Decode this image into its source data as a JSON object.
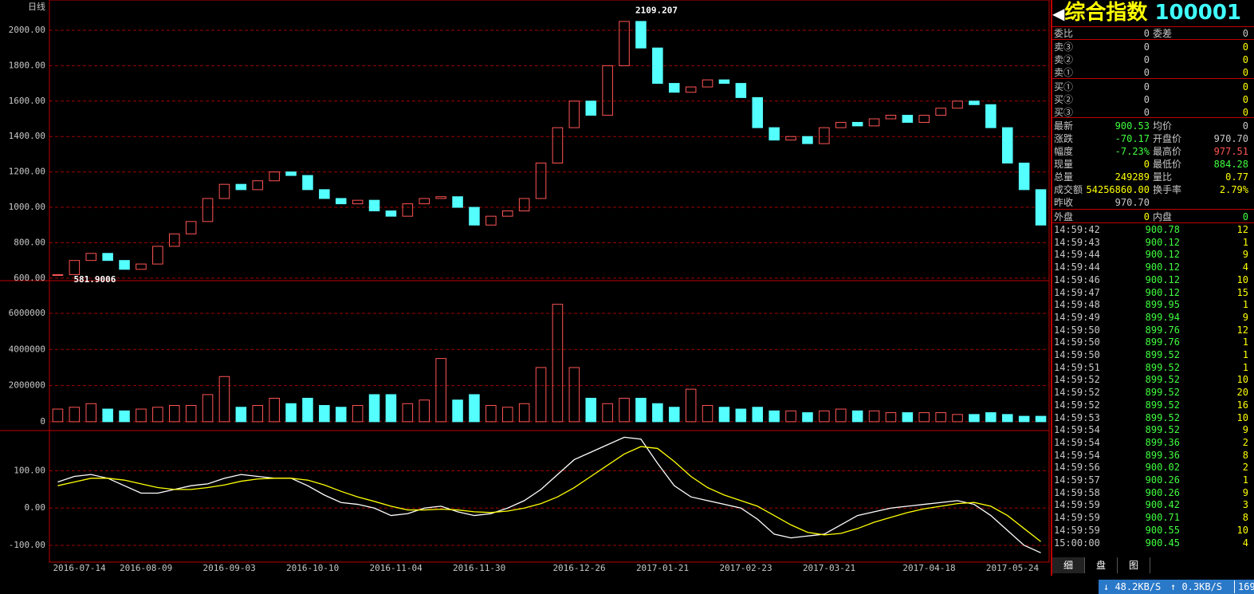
{
  "chart_data": [
    {
      "type": "candlestick",
      "title": "日线",
      "high_label": 2109.207,
      "low_label": 581.9006,
      "values": [
        620,
        700,
        740,
        700,
        650,
        680,
        780,
        850,
        920,
        1050,
        1130,
        1100,
        1150,
        1200,
        1180,
        1100,
        1050,
        1020,
        1040,
        980,
        950,
        1020,
        1050,
        1060,
        1000,
        900,
        950,
        980,
        1050,
        1250,
        1450,
        1600,
        1520,
        1800,
        2050,
        1900,
        1700,
        1650,
        1680,
        1720,
        1700,
        1620,
        1450,
        1380,
        1400,
        1360,
        1450,
        1480,
        1460,
        1500,
        1520,
        1480,
        1520,
        1560,
        1600,
        1580,
        1450,
        1250,
        1100,
        900
      ],
      "ylim": [
        586,
        2171
      ],
      "yticks": [
        {
          "value": 600,
          "label": "600.00"
        },
        {
          "value": 800,
          "label": "800.00"
        },
        {
          "value": 1000,
          "label": "1000.00"
        },
        {
          "value": 1200,
          "label": "1200.00"
        },
        {
          "value": 1400,
          "label": "1400.00"
        },
        {
          "value": 1600,
          "label": "1600.00"
        },
        {
          "value": 1800,
          "label": "1800.00"
        },
        {
          "value": 2000,
          "label": "2000.00"
        }
      ],
      "grid": true,
      "up_color": "#ff5454",
      "down_color": "#54ffff"
    },
    {
      "type": "bar",
      "values": [
        700000,
        800000,
        1000000,
        700000,
        600000,
        700000,
        800000,
        900000,
        900000,
        1500000,
        2500000,
        800000,
        900000,
        1300000,
        1000000,
        1300000,
        900000,
        800000,
        900000,
        1500000,
        1500000,
        1000000,
        1200000,
        3500000,
        1200000,
        1500000,
        900000,
        800000,
        1000000,
        3000000,
        6500000,
        3000000,
        1300000,
        1000000,
        1300000,
        1300000,
        1000000,
        800000,
        1800000,
        900000,
        800000,
        700000,
        800000,
        600000,
        600000,
        500000,
        600000,
        700000,
        600000,
        600000,
        500000,
        500000,
        500000,
        500000,
        400000,
        400000,
        500000,
        400000,
        300000,
        300000
      ],
      "ylim": [
        -490000,
        7810000
      ],
      "yticks": [
        0,
        2000000,
        4000000,
        6000000
      ],
      "grid": true
    },
    {
      "type": "line",
      "categories": [
        "2016-07-14",
        null,
        null,
        null,
        "2016-08-09",
        null,
        null,
        null,
        null,
        "2016-09-03",
        null,
        null,
        null,
        null,
        "2016-10-10",
        null,
        null,
        null,
        null,
        "2016-11-04",
        null,
        null,
        null,
        null,
        "2016-11-30",
        null,
        null,
        null,
        null,
        null,
        "2016-12-26",
        null,
        null,
        null,
        null,
        "2017-01-21",
        null,
        null,
        null,
        null,
        "2017-02-23",
        null,
        null,
        null,
        null,
        "2017-03-21",
        null,
        null,
        null,
        null,
        null,
        "2017-04-18",
        null,
        null,
        null,
        null,
        "2017-05-24",
        null,
        null,
        null
      ],
      "series": [
        {
          "color": "#ffffff",
          "values": [
            70,
            85,
            90,
            80,
            60,
            40,
            40,
            50,
            60,
            65,
            80,
            90,
            85,
            80,
            80,
            60,
            35,
            15,
            10,
            0,
            -20,
            -15,
            0,
            5,
            -10,
            -20,
            -15,
            0,
            20,
            50,
            90,
            130,
            150,
            170,
            190,
            185,
            120,
            60,
            30,
            20,
            10,
            0,
            -30,
            -70,
            -80,
            -75,
            -70,
            -45,
            -20,
            -10,
            0,
            5,
            10,
            15,
            20,
            10,
            -20,
            -60,
            -100,
            -120
          ]
        },
        {
          "color": "#ffff00",
          "values": [
            60,
            70,
            80,
            80,
            75,
            65,
            55,
            50,
            50,
            55,
            62,
            72,
            78,
            80,
            80,
            75,
            62,
            45,
            30,
            18,
            5,
            -5,
            -5,
            -3,
            -5,
            -10,
            -12,
            -8,
            0,
            12,
            30,
            55,
            85,
            115,
            145,
            165,
            160,
            125,
            85,
            55,
            35,
            20,
            5,
            -20,
            -45,
            -65,
            -72,
            -68,
            -55,
            -38,
            -25,
            -12,
            -2,
            5,
            12,
            15,
            5,
            -20,
            -55,
            -90
          ]
        }
      ],
      "ylim": [
        -145,
        208
      ],
      "yticks": [
        {
          "value": -100,
          "label": "-100.00"
        },
        {
          "value": 0,
          "label": "0.00"
        },
        {
          "value": 100,
          "label": "100.00"
        }
      ],
      "grid": true
    }
  ],
  "quote": {
    "name": "综合指数",
    "code": "100001",
    "rows": [
      [
        "委比",
        "0",
        "委差",
        "0"
      ],
      [
        "卖③",
        "0",
        "",
        "0"
      ],
      [
        "卖②",
        "0",
        "",
        "0"
      ],
      [
        "卖①",
        "0",
        "",
        "0"
      ],
      [
        "买①",
        "0",
        "",
        "0"
      ],
      [
        "买②",
        "0",
        "",
        "0"
      ],
      [
        "买③",
        "0",
        "",
        "0"
      ],
      [
        "最新",
        "900.53",
        "均价",
        "0"
      ],
      [
        "涨跌",
        "-70.17",
        "开盘价",
        "970.70"
      ],
      [
        "幅度",
        "-7.23%",
        "最高价",
        "977.51"
      ],
      [
        "现量",
        "0",
        "最低价",
        "884.28"
      ],
      [
        "总量",
        "249289",
        "量比",
        "0.77"
      ],
      [
        "成交额",
        "54256860.00",
        "换手率",
        "2.79%"
      ],
      [
        "昨收",
        "970.70",
        "",
        ""
      ],
      [
        "外盘",
        "0",
        "内盘",
        "0"
      ]
    ]
  },
  "ticks": [
    [
      "14:59:42",
      "900.78",
      "12"
    ],
    [
      "14:59:43",
      "900.12",
      "1"
    ],
    [
      "14:59:44",
      "900.12",
      "9"
    ],
    [
      "14:59:44",
      "900.12",
      "4"
    ],
    [
      "14:59:46",
      "900.12",
      "10"
    ],
    [
      "14:59:47",
      "900.12",
      "15"
    ],
    [
      "14:59:48",
      "899.95",
      "1"
    ],
    [
      "14:59:49",
      "899.94",
      "9"
    ],
    [
      "14:59:50",
      "899.76",
      "12"
    ],
    [
      "14:59:50",
      "899.76",
      "1"
    ],
    [
      "14:59:50",
      "899.52",
      "1"
    ],
    [
      "14:59:51",
      "899.52",
      "1"
    ],
    [
      "14:59:52",
      "899.52",
      "10"
    ],
    [
      "14:59:52",
      "899.52",
      "20"
    ],
    [
      "14:59:52",
      "899.52",
      "16"
    ],
    [
      "14:59:53",
      "899.52",
      "10"
    ],
    [
      "14:59:54",
      "899.52",
      "9"
    ],
    [
      "14:59:54",
      "899.36",
      "2"
    ],
    [
      "14:59:54",
      "899.36",
      "8"
    ],
    [
      "14:59:56",
      "900.02",
      "2"
    ],
    [
      "14:59:57",
      "900.26",
      "1"
    ],
    [
      "14:59:58",
      "900.26",
      "9"
    ],
    [
      "14:59:59",
      "900.42",
      "3"
    ],
    [
      "14:59:59",
      "900.71",
      "8"
    ],
    [
      "14:59:59",
      "900.55",
      "10"
    ],
    [
      "15:00:00",
      "900.45",
      "4"
    ]
  ],
  "tabs": [
    "细",
    "盘",
    "图"
  ],
  "status": {
    "down": "48.2KB/S",
    "up": "0.3KB/S",
    "extra": "169"
  }
}
